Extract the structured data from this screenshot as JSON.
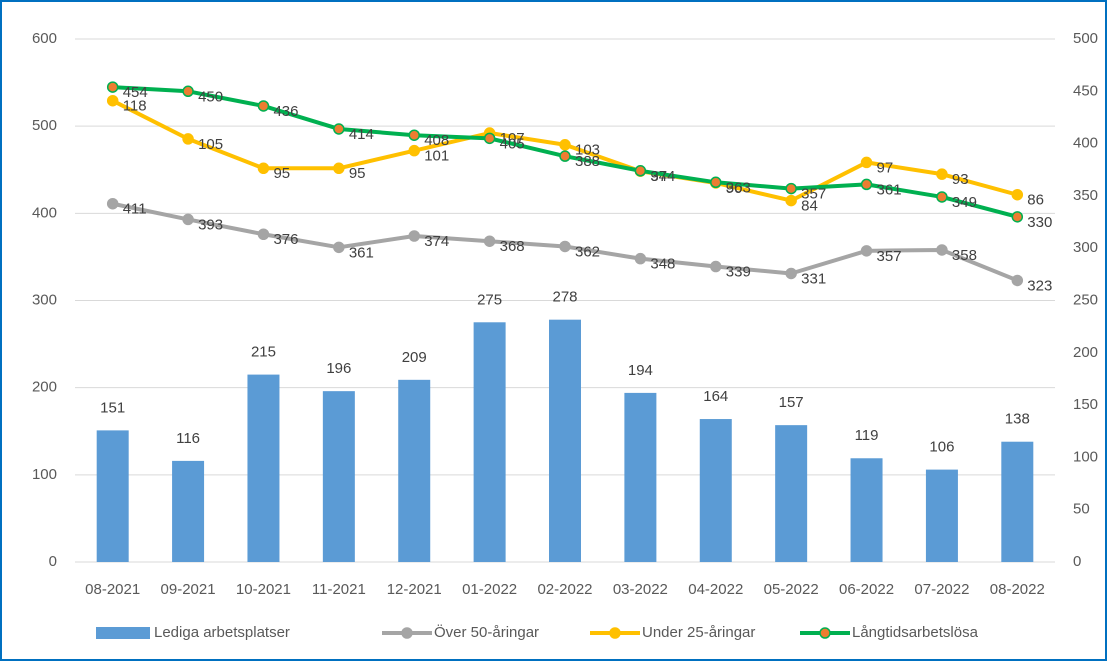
{
  "chart_data": {
    "type": "bar",
    "categories": [
      "08-2021",
      "09-2021",
      "10-2021",
      "11-2021",
      "12-2021",
      "01-2022",
      "02-2022",
      "03-2022",
      "04-2022",
      "05-2022",
      "06-2022",
      "07-2022",
      "08-2022"
    ],
    "ylim": [
      0,
      600
    ],
    "yticks": [
      0,
      100,
      200,
      300,
      400,
      500,
      600
    ],
    "y2lim": [
      0,
      500
    ],
    "y2ticks": [
      0,
      50,
      100,
      150,
      200,
      250,
      300,
      350,
      400,
      450,
      500
    ],
    "grid": true,
    "legend": "bottom",
    "series": [
      {
        "name": "Lediga arbetsplatser",
        "type": "bar",
        "color": "#5b9bd5",
        "values": [
          151,
          116,
          215,
          196,
          209,
          275,
          278,
          194,
          164,
          157,
          119,
          106,
          138
        ]
      },
      {
        "name": "Över 50-åringar",
        "type": "line",
        "color": "#a5a5a5",
        "marker_color": "#a5a5a5",
        "values": [
          411,
          393,
          376,
          361,
          374,
          368,
          362,
          348,
          339,
          331,
          357,
          358,
          323
        ]
      },
      {
        "name": "Under 25-åringar",
        "type": "line",
        "color": "#ffc000",
        "marker_color": "#ffc000",
        "ylim": [
          -39,
          139
        ],
        "values": [
          118,
          105,
          95,
          95,
          101,
          107,
          103,
          94,
          90,
          84,
          97,
          93,
          86
        ]
      },
      {
        "name": "Långtidsarbetslösa",
        "type": "line",
        "axis": "y2",
        "color": "#00b050",
        "marker_color": "#ed7d31",
        "values": [
          454,
          450,
          436,
          414,
          408,
          405,
          388,
          374,
          363,
          357,
          361,
          349,
          330
        ]
      }
    ]
  }
}
